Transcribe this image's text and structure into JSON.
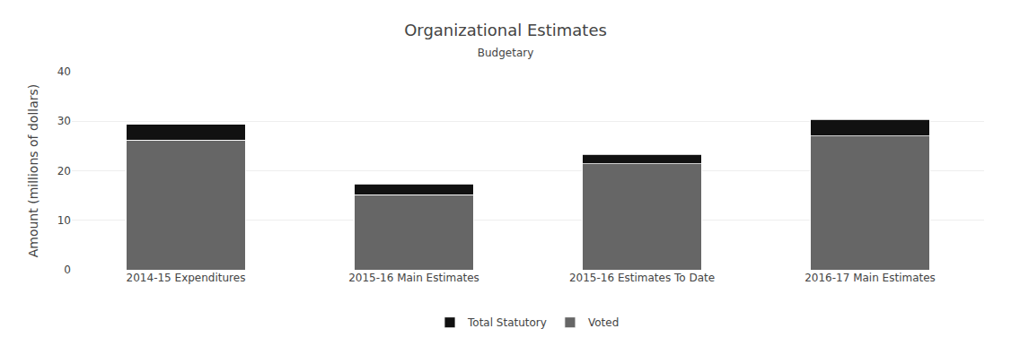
{
  "chart_data": {
    "type": "bar",
    "stacked": true,
    "title": "Organizational Estimates",
    "subtitle": "Budgetary",
    "categories": [
      "2014-15 Expenditures",
      "2015-16 Main Estimates",
      "2015-16 Estimates To Date",
      "2016-17 Main Estimates"
    ],
    "series": [
      {
        "name": "Voted",
        "color": "#666666",
        "values": [
          26.2,
          15.2,
          21.4,
          27.0
        ]
      },
      {
        "name": "Total Statutory",
        "color": "#111111",
        "values": [
          3.2,
          2.1,
          1.9,
          3.4
        ]
      }
    ],
    "ylabel": "Amount (millions of dollars)",
    "ylim": [
      0,
      40
    ],
    "yticks": [
      0,
      10,
      20,
      30,
      40
    ],
    "grid": true,
    "legend": "bottom"
  }
}
